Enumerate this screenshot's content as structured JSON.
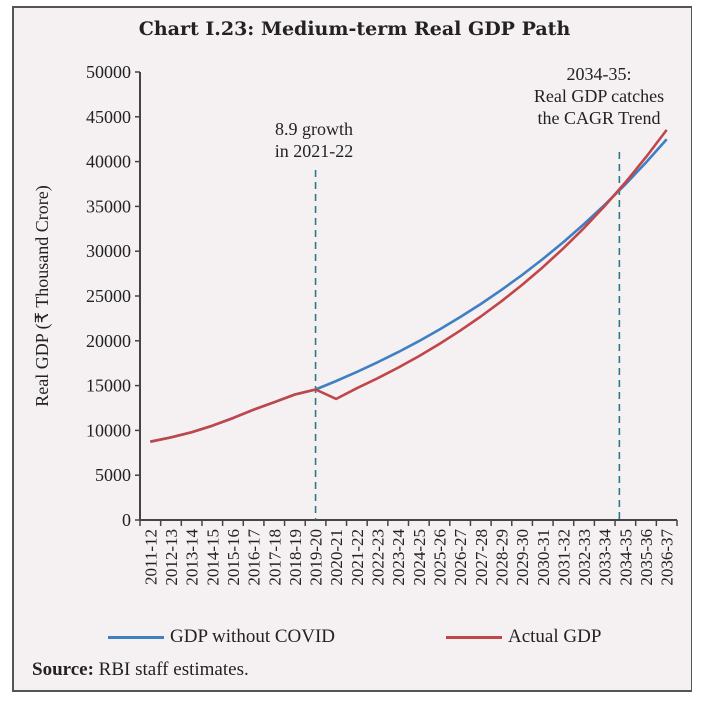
{
  "chart_data": {
    "type": "line",
    "title": "Chart I.23: Medium-term Real GDP Path",
    "xlabel": "",
    "ylabel": "Real GDP (₹ Thousand Crore)",
    "ylim": [
      0,
      50000
    ],
    "yticks": [
      0,
      5000,
      10000,
      15000,
      20000,
      25000,
      30000,
      35000,
      40000,
      45000,
      50000
    ],
    "grid": false,
    "legend_position": "bottom",
    "categories": [
      "2011-12",
      "2012-13",
      "2013-14",
      "2014-15",
      "2015-16",
      "2016-17",
      "2017-18",
      "2018-19",
      "2019-20",
      "2020-21",
      "2021-22",
      "2022-23",
      "2023-24",
      "2024-25",
      "2025-26",
      "2026-27",
      "2027-28",
      "2028-29",
      "2029-30",
      "2030-31",
      "2031-32",
      "2032-33",
      "2033-34",
      "2034-35",
      "2035-36",
      "2036-37"
    ],
    "series": [
      {
        "name": "GDP without COVID",
        "color": "#3f7fc4",
        "values": [
          8736,
          9214,
          9802,
          10528,
          11369,
          12309,
          13145,
          14003,
          14569,
          15516,
          16524,
          17598,
          18742,
          19960,
          21258,
          22640,
          24111,
          25679,
          27348,
          29125,
          31018,
          33034,
          35182,
          37469,
          39904,
          42498
        ]
      },
      {
        "name": "Actual GDP",
        "color": "#c0464a",
        "values": [
          8736,
          9214,
          9802,
          10528,
          11369,
          12309,
          13145,
          14003,
          14569,
          13512,
          14714,
          15818,
          17004,
          18279,
          19650,
          21124,
          22708,
          24411,
          26242,
          28210,
          30326,
          32600,
          35045,
          37674,
          40500,
          43537
        ]
      }
    ],
    "annotations": [
      {
        "category": "2019-20",
        "lines": [
          "8.9 growth",
          "in 2021-22"
        ],
        "style": "dashed-vertical",
        "color": "#2a7a85"
      },
      {
        "category": "2034-35",
        "lines": [
          "2034-35:",
          "Real GDP catches",
          "the CAGR Trend"
        ],
        "style": "dashed-vertical",
        "color": "#2a7a85"
      }
    ]
  },
  "legend": [
    {
      "label": "GDP without COVID",
      "color": "#3f7fc4"
    },
    {
      "label": "Actual GDP",
      "color": "#c0464a"
    }
  ],
  "source": {
    "label": "Source:",
    "text": " RBI staff estimates."
  }
}
